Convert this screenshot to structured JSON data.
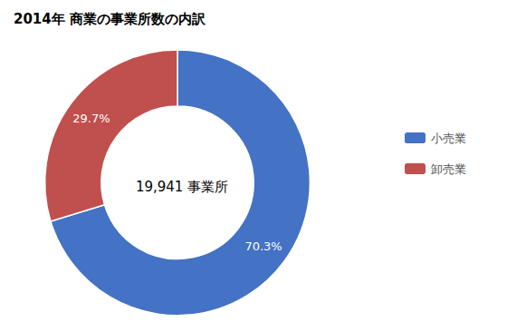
{
  "chart_data": {
    "type": "pie",
    "title": "2014年 商業の事業所数の内訳",
    "annotations": [
      "19,941 事業所"
    ],
    "categories": [
      "小売業",
      "卸売業"
    ],
    "values": [
      70.3,
      29.7
    ],
    "value_labels": [
      "70.3%",
      "29.7%"
    ],
    "colors": [
      "#4472C4",
      "#C0504D"
    ],
    "data_labels": true,
    "legend": "right"
  }
}
